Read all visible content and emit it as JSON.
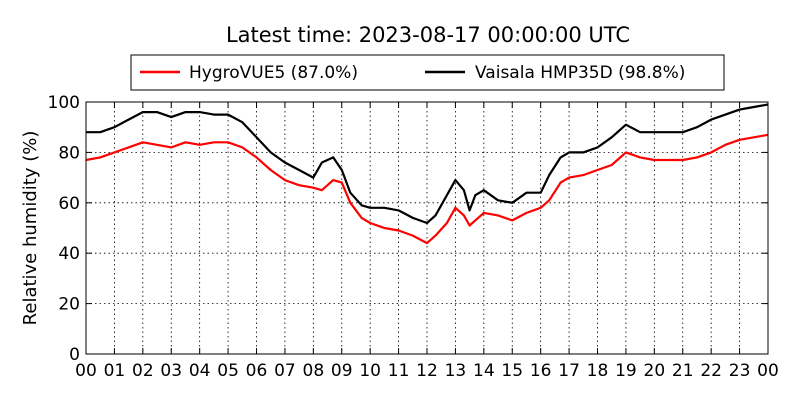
{
  "chart_data": {
    "type": "line",
    "title": "Latest time: 2023-08-17 00:00:00 UTC",
    "xlabel": "",
    "ylabel": "Relative humidity (%)",
    "ylim": [
      0,
      100
    ],
    "xlim": [
      0,
      24
    ],
    "yticks": [
      0,
      20,
      40,
      60,
      80,
      100
    ],
    "xtick_labels": [
      "00",
      "01",
      "02",
      "03",
      "04",
      "05",
      "06",
      "07",
      "08",
      "09",
      "10",
      "11",
      "12",
      "13",
      "14",
      "15",
      "16",
      "17",
      "18",
      "19",
      "20",
      "21",
      "22",
      "23",
      "00"
    ],
    "grid": true,
    "legend_placement": "top-center",
    "x_unit": "hour (UTC)",
    "series": [
      {
        "name": "HygroVUE5 (87.0%)",
        "color": "#ff0000",
        "x": [
          0,
          0.5,
          1,
          1.5,
          2,
          2.5,
          3,
          3.5,
          4,
          4.5,
          5,
          5.5,
          6,
          6.5,
          7,
          7.5,
          8,
          8.3,
          8.7,
          9,
          9.3,
          9.7,
          10,
          10.5,
          11,
          11.5,
          12,
          12.3,
          12.7,
          13,
          13.3,
          13.5,
          13.7,
          14,
          14.5,
          15,
          15.5,
          16,
          16.3,
          16.7,
          17,
          17.5,
          18,
          18.5,
          19,
          19.5,
          20,
          20.5,
          21,
          21.5,
          22,
          22.5,
          23,
          23.5,
          24
        ],
        "values": [
          77,
          78,
          80,
          82,
          84,
          83,
          82,
          84,
          83,
          84,
          84,
          82,
          78,
          73,
          69,
          67,
          66,
          65,
          69,
          68,
          60,
          54,
          52,
          50,
          49,
          47,
          44,
          47,
          52,
          58,
          55,
          51,
          53,
          56,
          55,
          53,
          56,
          58,
          61,
          68,
          70,
          71,
          73,
          75,
          80,
          78,
          77,
          77,
          77,
          78,
          80,
          83,
          85,
          86,
          87
        ]
      },
      {
        "name": "Vaisala HMP35D (98.8%)",
        "color": "#000000",
        "x": [
          0,
          0.5,
          1,
          1.5,
          2,
          2.5,
          3,
          3.5,
          4,
          4.5,
          5,
          5.5,
          6,
          6.5,
          7,
          7.5,
          8,
          8.3,
          8.7,
          9,
          9.3,
          9.7,
          10,
          10.5,
          11,
          11.5,
          12,
          12.3,
          12.7,
          13,
          13.3,
          13.5,
          13.7,
          14,
          14.5,
          15,
          15.5,
          16,
          16.3,
          16.7,
          17,
          17.5,
          18,
          18.5,
          19,
          19.5,
          20,
          20.5,
          21,
          21.5,
          22,
          22.5,
          23,
          23.5,
          24
        ],
        "values": [
          88,
          88,
          90,
          93,
          96,
          96,
          94,
          96,
          96,
          95,
          95,
          92,
          86,
          80,
          76,
          73,
          70,
          76,
          78,
          73,
          64,
          59,
          58,
          58,
          57,
          54,
          52,
          55,
          63,
          69,
          65,
          57,
          63,
          65,
          61,
          60,
          64,
          64,
          71,
          78,
          80,
          80,
          82,
          86,
          91,
          88,
          88,
          88,
          88,
          90,
          93,
          95,
          97,
          98,
          99
        ]
      }
    ]
  }
}
